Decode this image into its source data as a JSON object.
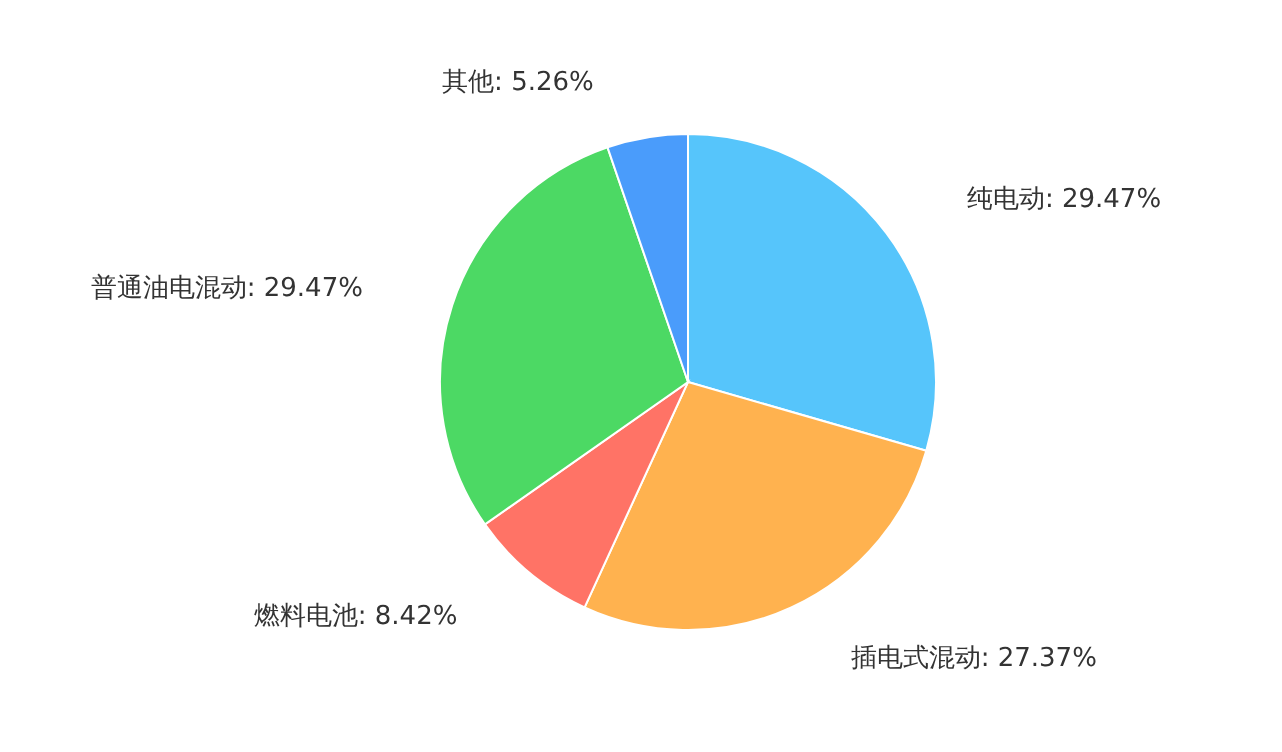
{
  "chart_data": {
    "type": "pie",
    "categories": [
      "纯电动",
      "插电式混动",
      "燃料电池",
      "普通油电混动",
      "其他"
    ],
    "values": [
      29.47,
      27.37,
      8.42,
      29.47,
      5.26
    ],
    "colors": [
      "#56c5fb",
      "#ffb24f",
      "#ff7366",
      "#4cd964",
      "#4a9cfb"
    ],
    "value_labels": [
      ": 29.47%",
      ": 27.37%",
      ": 8.42%",
      ": 29.47%",
      " : 5.26%"
    ]
  }
}
